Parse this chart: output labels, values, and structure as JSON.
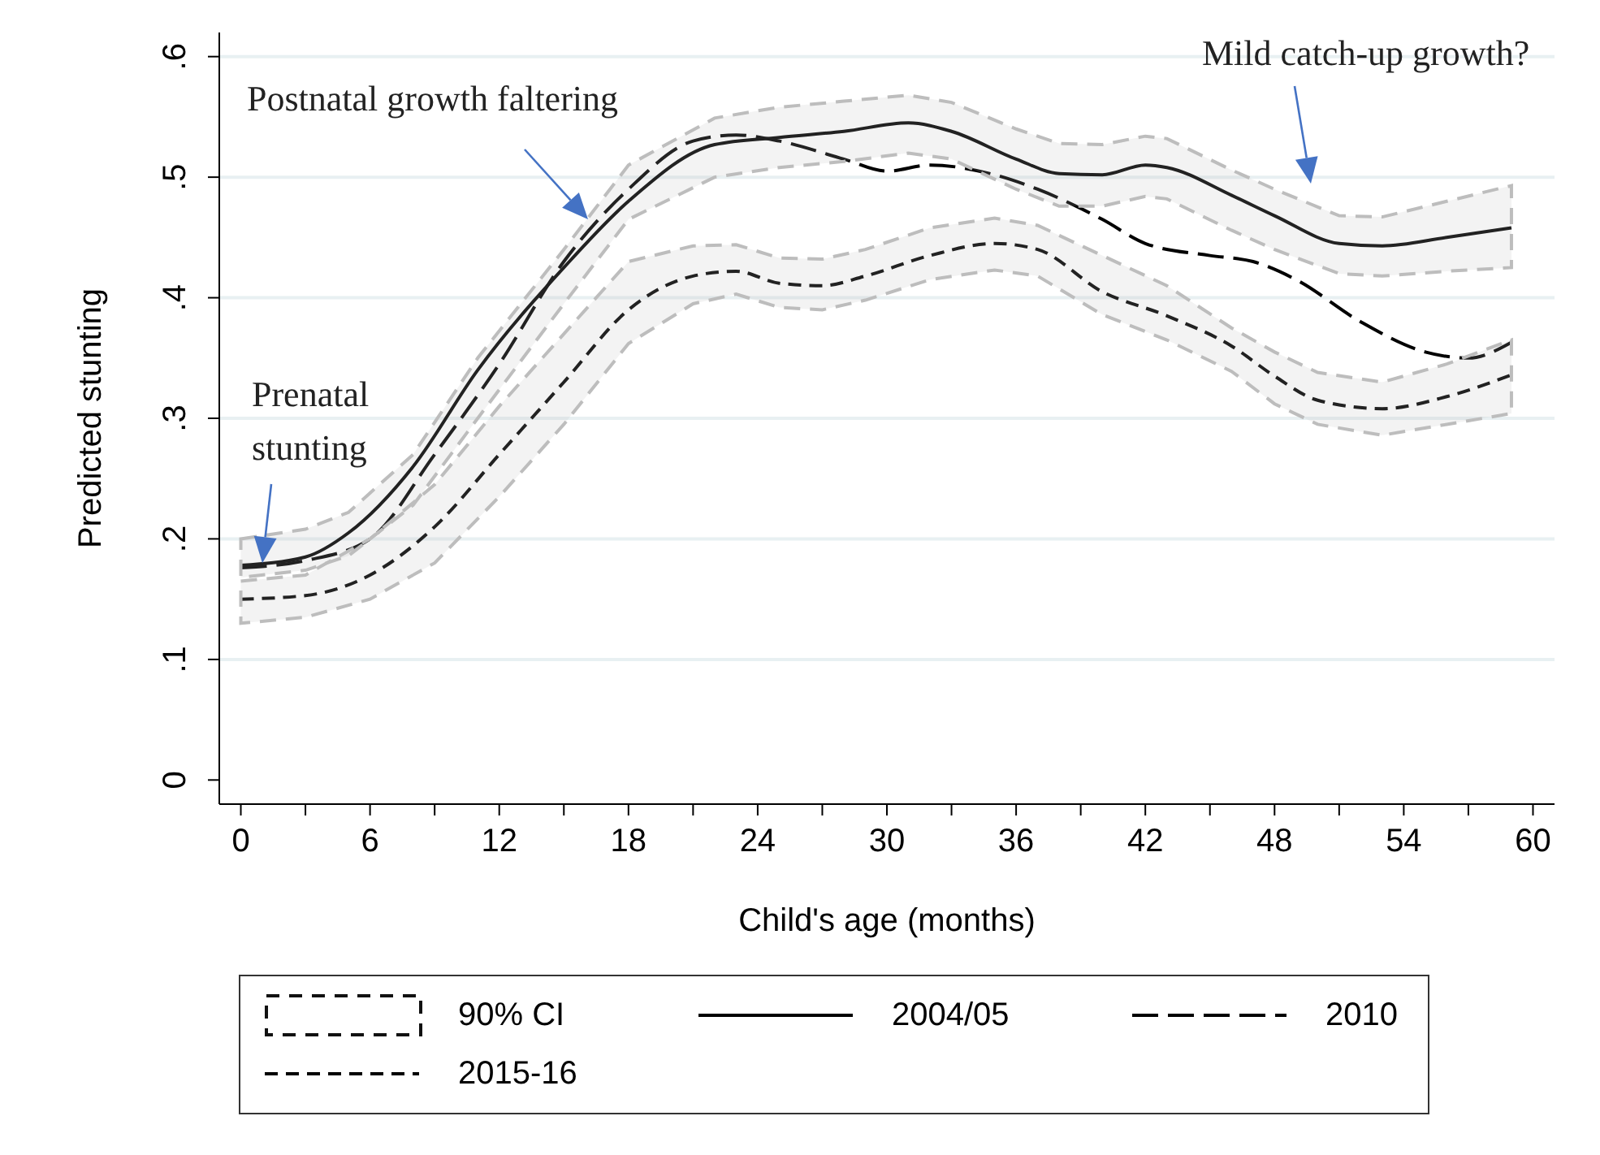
{
  "chart_data": {
    "type": "line",
    "xlabel": "Child's age (months)",
    "ylabel": "Predicted stunting",
    "xlim": [
      -1,
      61
    ],
    "ylim": [
      -0.02,
      0.62
    ],
    "xticks": [
      0,
      {
        "value": 3,
        "label": null
      },
      6,
      {
        "value": 9,
        "label": null
      },
      12,
      {
        "value": 15,
        "label": null
      },
      18,
      {
        "value": 21,
        "label": null
      },
      24,
      {
        "value": 27,
        "label": null
      },
      30,
      {
        "value": 33,
        "label": null
      },
      36,
      {
        "value": 39,
        "label": null
      },
      42,
      {
        "value": 45,
        "label": null
      },
      48,
      {
        "value": 51,
        "label": null
      },
      54,
      {
        "value": 57,
        "label": null
      },
      60
    ],
    "yticks": [
      0,
      {
        "value": 0.1,
        "label": ".1"
      },
      {
        "value": 0.2,
        "label": ".2"
      },
      {
        "value": 0.3,
        "label": ".3"
      },
      {
        "value": 0.4,
        "label": ".4"
      },
      {
        "value": 0.5,
        "label": ".5"
      },
      {
        "value": 0.6,
        "label": ".6"
      }
    ],
    "grid": "y",
    "legend": "bottom",
    "marker": "none",
    "series": [
      {
        "name": "2004/05",
        "color": "#000000",
        "line_style": "solid",
        "x": [
          0,
          3,
          5,
          8,
          11,
          15,
          18,
          22,
          25,
          28,
          31,
          33,
          36,
          38,
          40,
          42,
          43,
          46,
          48,
          51,
          53,
          56,
          59
        ],
        "values": [
          0.178,
          0.185,
          0.205,
          0.26,
          0.34,
          0.425,
          0.48,
          0.527,
          0.533,
          0.538,
          0.545,
          0.538,
          0.515,
          0.503,
          0.502,
          0.51,
          0.508,
          0.485,
          0.468,
          0.445,
          0.443,
          0.45,
          0.458
        ],
        "upper": [
          0.2,
          0.208,
          0.222,
          0.27,
          0.35,
          0.44,
          0.51,
          0.549,
          0.558,
          0.563,
          0.568,
          0.562,
          0.54,
          0.528,
          0.527,
          0.534,
          0.532,
          0.506,
          0.49,
          0.468,
          0.467,
          0.48,
          0.493
        ],
        "lower": [
          0.168,
          0.174,
          0.186,
          0.228,
          0.3,
          0.395,
          0.465,
          0.5,
          0.508,
          0.513,
          0.52,
          0.515,
          0.49,
          0.476,
          0.476,
          0.484,
          0.482,
          0.456,
          0.44,
          0.42,
          0.418,
          0.422,
          0.425
        ]
      },
      {
        "name": "2010",
        "color": "#000000",
        "line_style": "dashed",
        "x": [
          0,
          3,
          6,
          9,
          12,
          15,
          18,
          21,
          23,
          25,
          28,
          30,
          32,
          35,
          37,
          40,
          42,
          45,
          47,
          49,
          52,
          55,
          57,
          59
        ],
        "values": [
          0.176,
          0.182,
          0.2,
          0.27,
          0.345,
          0.43,
          0.49,
          0.53,
          0.535,
          0.53,
          0.515,
          0.505,
          0.51,
          0.502,
          0.49,
          0.465,
          0.445,
          0.435,
          0.43,
          0.415,
          0.38,
          0.355,
          0.35,
          0.363
        ]
      },
      {
        "name": "2015-16",
        "color": "#000000",
        "line_style": "dashed",
        "x": [
          0,
          3,
          6,
          9,
          12,
          15,
          18,
          21,
          23,
          25,
          27,
          29,
          32,
          35,
          37,
          40,
          43,
          46,
          48,
          50,
          53,
          56,
          59
        ],
        "values": [
          0.15,
          0.153,
          0.17,
          0.21,
          0.27,
          0.33,
          0.39,
          0.418,
          0.422,
          0.412,
          0.41,
          0.418,
          0.435,
          0.445,
          0.44,
          0.405,
          0.385,
          0.36,
          0.335,
          0.315,
          0.308,
          0.318,
          0.336
        ],
        "upper": [
          0.165,
          0.17,
          0.2,
          0.245,
          0.31,
          0.37,
          0.43,
          0.443,
          0.444,
          0.433,
          0.432,
          0.44,
          0.458,
          0.466,
          0.46,
          0.435,
          0.41,
          0.375,
          0.355,
          0.338,
          0.33,
          0.345,
          0.365
        ],
        "lower": [
          0.13,
          0.135,
          0.15,
          0.18,
          0.235,
          0.295,
          0.362,
          0.395,
          0.403,
          0.392,
          0.39,
          0.398,
          0.415,
          0.423,
          0.418,
          0.386,
          0.365,
          0.339,
          0.312,
          0.295,
          0.286,
          0.295,
          0.304
        ]
      }
    ],
    "annotations": [
      {
        "text": "Prenatal\nstunting",
        "x": 1,
        "y": 0.18
      },
      "Postnatal growth faltering",
      "Mild catch-up growth?",
      "90% CI"
    ]
  }
}
